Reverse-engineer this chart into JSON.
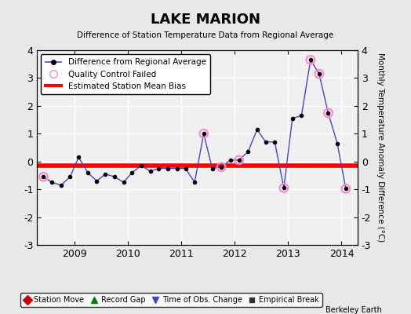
{
  "title": "LAKE MARION",
  "subtitle": "Difference of Station Temperature Data from Regional Average",
  "ylabel_right": "Monthly Temperature Anomaly Difference (°C)",
  "bias_value": -0.15,
  "xlim": [
    2008.3,
    2014.3
  ],
  "ylim": [
    -3.0,
    4.0
  ],
  "yticks": [
    -3,
    -2,
    -1,
    0,
    1,
    2,
    3,
    4
  ],
  "xticks": [
    2009,
    2010,
    2011,
    2012,
    2013,
    2014
  ],
  "background_color": "#e8e8e8",
  "plot_bg_color": "#f0f0f0",
  "grid_color": "#ffffff",
  "line_color": "#4444cc",
  "marker_color": "#000000",
  "bias_color": "#ff0000",
  "qc_color": "#ff88cc",
  "watermark": "Berkeley Earth",
  "time_series": [
    [
      2008.42,
      -0.55
    ],
    [
      2008.58,
      -0.75
    ],
    [
      2008.75,
      -0.85
    ],
    [
      2008.92,
      -0.55
    ],
    [
      2009.08,
      0.15
    ],
    [
      2009.25,
      -0.4
    ],
    [
      2009.42,
      -0.7
    ],
    [
      2009.58,
      -0.45
    ],
    [
      2009.75,
      -0.55
    ],
    [
      2009.92,
      -0.75
    ],
    [
      2010.08,
      -0.4
    ],
    [
      2010.25,
      -0.15
    ],
    [
      2010.42,
      -0.35
    ],
    [
      2010.58,
      -0.25
    ],
    [
      2010.75,
      -0.25
    ],
    [
      2010.92,
      -0.25
    ],
    [
      2011.08,
      -0.25
    ],
    [
      2011.25,
      -0.75
    ],
    [
      2011.42,
      1.0
    ],
    [
      2011.58,
      -0.25
    ],
    [
      2011.75,
      -0.2
    ],
    [
      2011.92,
      0.05
    ],
    [
      2012.08,
      0.05
    ],
    [
      2012.25,
      0.35
    ],
    [
      2012.42,
      1.15
    ],
    [
      2012.58,
      0.7
    ],
    [
      2012.75,
      0.7
    ],
    [
      2012.92,
      -0.95
    ],
    [
      2013.08,
      1.55
    ],
    [
      2013.25,
      1.65
    ],
    [
      2013.42,
      3.65
    ],
    [
      2013.58,
      3.15
    ],
    [
      2013.75,
      1.75
    ],
    [
      2013.92,
      0.65
    ],
    [
      2014.08,
      -0.98
    ]
  ],
  "qc_failed_points": [
    [
      2008.42,
      -0.55
    ],
    [
      2011.42,
      1.0
    ],
    [
      2011.75,
      -0.2
    ],
    [
      2012.08,
      0.05
    ],
    [
      2012.92,
      -0.95
    ],
    [
      2013.42,
      3.65
    ],
    [
      2013.58,
      3.15
    ],
    [
      2013.75,
      1.75
    ],
    [
      2014.08,
      -0.98
    ]
  ]
}
